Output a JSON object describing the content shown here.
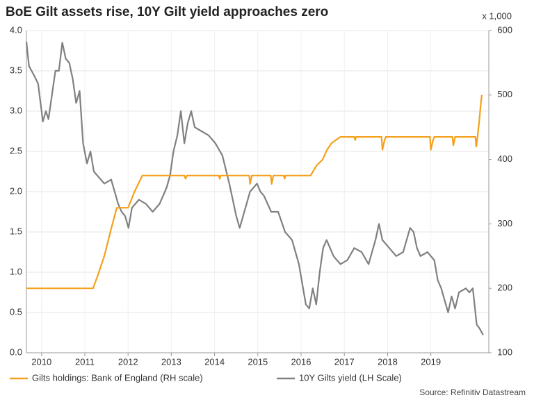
{
  "chart_data": {
    "type": "line",
    "title": "BoE Gilt assets rise, 10Y Gilt yield approaches zero",
    "y2_label": "x 1,000",
    "source": "Source: Refinitiv Datastream",
    "xlim": [
      2009.65,
      2020.34
    ],
    "xticks": [
      2010,
      2011,
      2012,
      2013,
      2014,
      2015,
      2016,
      2017,
      2018,
      2019
    ],
    "ylim": [
      0,
      4
    ],
    "yticks": [
      {
        "value": 0,
        "label": "0.0"
      },
      {
        "value": 0.5,
        "label": "0.5"
      },
      {
        "value": 1,
        "label": "1.0"
      },
      {
        "value": 1.5,
        "label": "1.5"
      },
      {
        "value": 2,
        "label": "2.0"
      },
      {
        "value": 2.5,
        "label": "2.5"
      },
      {
        "value": 3,
        "label": "3.0"
      },
      {
        "value": 3.5,
        "label": "3.5"
      },
      {
        "value": 4,
        "label": "4.0"
      }
    ],
    "y2lim": [
      100,
      600
    ],
    "y2ticks": [
      100,
      200,
      300,
      400,
      500,
      600
    ],
    "grid": true,
    "legend": "bottom",
    "series": [
      {
        "name": "Gilts holdings: Bank of England (RH scale)",
        "color": "#f5a01a",
        "axis": "y2",
        "x": [
          2009.65,
          2011.19,
          2011.3,
          2011.45,
          2011.6,
          2011.74,
          2012.0,
          2012.15,
          2012.33,
          2013.3,
          2013.33,
          2013.36,
          2014.1,
          2014.12,
          2014.14,
          2014.8,
          2014.82,
          2014.86,
          2015.3,
          2015.32,
          2015.36,
          2015.6,
          2015.62,
          2015.64,
          2016.22,
          2016.35,
          2016.5,
          2016.6,
          2016.7,
          2016.8,
          2016.91,
          2017.23,
          2017.25,
          2017.27,
          2017.86,
          2017.88,
          2017.93,
          2017.96,
          2018.98,
          2019.0,
          2019.05,
          2019.08,
          2019.5,
          2019.52,
          2019.56,
          2020.03,
          2020.05,
          2020.08,
          2020.12,
          2020.16,
          2020.18
        ],
        "values": [
          200,
          200,
          220,
          250,
          290,
          325,
          325,
          350,
          375,
          375,
          370,
          375,
          375,
          370,
          375,
          375,
          362,
          375,
          375,
          362,
          375,
          375,
          370,
          375,
          375,
          390,
          400,
          415,
          425,
          430,
          435,
          435,
          430,
          435,
          435,
          415,
          430,
          435,
          435,
          415,
          430,
          435,
          435,
          422,
          435,
          435,
          420,
          435,
          460,
          490,
          500
        ]
      },
      {
        "name": "10Y Gilts yield (LH Scale)",
        "color": "#808080",
        "x": [
          2009.65,
          2009.71,
          2009.84,
          2009.92,
          2010.0,
          2010.03,
          2010.1,
          2010.16,
          2010.24,
          2010.32,
          2010.4,
          2010.48,
          2010.56,
          2010.64,
          2010.72,
          2010.8,
          2010.88,
          2010.96,
          2011.05,
          2011.13,
          2011.21,
          2011.29,
          2011.45,
          2011.61,
          2011.77,
          2011.85,
          2011.93,
          2012.01,
          2012.09,
          2012.25,
          2012.41,
          2012.57,
          2012.73,
          2012.89,
          2012.97,
          2013.05,
          2013.14,
          2013.22,
          2013.3,
          2013.38,
          2013.46,
          2013.54,
          2013.7,
          2013.86,
          2014.02,
          2014.18,
          2014.34,
          2014.5,
          2014.58,
          2014.66,
          2014.82,
          2014.98,
          2015.06,
          2015.14,
          2015.31,
          2015.47,
          2015.63,
          2015.79,
          2015.95,
          2016.03,
          2016.11,
          2016.19,
          2016.27,
          2016.35,
          2016.43,
          2016.51,
          2016.59,
          2016.75,
          2016.91,
          2017.07,
          2017.23,
          2017.4,
          2017.56,
          2017.72,
          2017.8,
          2017.88,
          2018.04,
          2018.2,
          2018.36,
          2018.52,
          2018.6,
          2018.68,
          2018.76,
          2018.92,
          2019.08,
          2019.16,
          2019.24,
          2019.32,
          2019.4,
          2019.48,
          2019.56,
          2019.65,
          2019.81,
          2019.89,
          2019.97,
          2020.02,
          2020.06,
          2020.13,
          2020.18,
          2020.21
        ],
        "values": [
          3.86,
          3.56,
          3.43,
          3.34,
          3.0,
          2.87,
          3.0,
          2.9,
          3.2,
          3.5,
          3.5,
          3.85,
          3.65,
          3.6,
          3.4,
          3.1,
          3.25,
          2.6,
          2.35,
          2.5,
          2.25,
          2.2,
          2.1,
          2.15,
          1.85,
          1.75,
          1.7,
          1.55,
          1.8,
          1.9,
          1.85,
          1.75,
          1.85,
          2.05,
          2.2,
          2.5,
          2.7,
          3.0,
          2.6,
          2.85,
          3.0,
          2.8,
          2.75,
          2.7,
          2.6,
          2.45,
          2.1,
          1.7,
          1.55,
          1.7,
          2.0,
          2.1,
          2.0,
          1.95,
          1.75,
          1.75,
          1.5,
          1.4,
          1.1,
          0.85,
          0.6,
          0.55,
          0.8,
          0.6,
          1.0,
          1.3,
          1.4,
          1.2,
          1.1,
          1.15,
          1.3,
          1.25,
          1.1,
          1.4,
          1.6,
          1.4,
          1.3,
          1.2,
          1.25,
          1.55,
          1.5,
          1.3,
          1.2,
          1.25,
          1.15,
          0.9,
          0.8,
          0.65,
          0.5,
          0.7,
          0.55,
          0.75,
          0.8,
          0.75,
          0.8,
          0.55,
          0.35,
          0.3,
          0.25,
          0.22
        ]
      }
    ]
  }
}
